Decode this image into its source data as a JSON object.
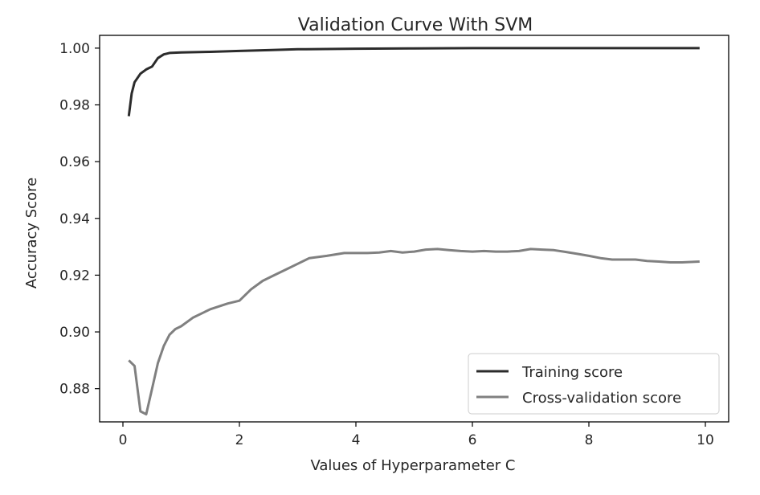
{
  "chart_data": {
    "type": "line",
    "title": "Validation Curve With SVM",
    "xlabel": "Values of Hyperparameter C",
    "ylabel": "Accuracy Score",
    "xlim": [
      -0.4,
      10.4
    ],
    "ylim": [
      0.8683,
      1.0045
    ],
    "xticks": [
      0,
      2,
      4,
      6,
      8,
      10
    ],
    "yticks": [
      0.88,
      0.9,
      0.92,
      0.94,
      0.96,
      0.98,
      1.0
    ],
    "ytick_labels": [
      "0.88",
      "0.90",
      "0.92",
      "0.94",
      "0.96",
      "0.98",
      "1.00"
    ],
    "grid": false,
    "legend_position": "lower-right",
    "series": [
      {
        "name": "Training score",
        "color": "#2b2b2b",
        "x": [
          0.1,
          0.15,
          0.2,
          0.3,
          0.4,
          0.5,
          0.6,
          0.7,
          0.8,
          1.0,
          1.5,
          2.0,
          2.5,
          3.0,
          4.0,
          5.0,
          6.0,
          7.0,
          8.0,
          9.0,
          9.9
        ],
        "y": [
          0.976,
          0.984,
          0.988,
          0.991,
          0.9925,
          0.9935,
          0.9965,
          0.9978,
          0.9983,
          0.9985,
          0.9987,
          0.999,
          0.9993,
          0.9996,
          0.9998,
          0.9999,
          1.0,
          1.0,
          1.0,
          1.0,
          1.0
        ]
      },
      {
        "name": "Cross-validation score",
        "color": "#808080",
        "x": [
          0.1,
          0.2,
          0.3,
          0.4,
          0.5,
          0.6,
          0.7,
          0.8,
          0.9,
          1.0,
          1.2,
          1.5,
          1.8,
          2.0,
          2.2,
          2.4,
          2.6,
          2.8,
          3.0,
          3.2,
          3.5,
          3.8,
          4.0,
          4.2,
          4.4,
          4.6,
          4.8,
          5.0,
          5.2,
          5.4,
          5.6,
          5.8,
          6.0,
          6.2,
          6.4,
          6.6,
          6.8,
          7.0,
          7.2,
          7.4,
          7.6,
          7.8,
          8.0,
          8.2,
          8.4,
          8.6,
          8.8,
          9.0,
          9.2,
          9.4,
          9.6,
          9.9
        ],
        "y": [
          0.89,
          0.888,
          0.872,
          0.871,
          0.88,
          0.889,
          0.895,
          0.899,
          0.901,
          0.902,
          0.905,
          0.908,
          0.91,
          0.911,
          0.915,
          0.918,
          0.92,
          0.922,
          0.924,
          0.926,
          0.9268,
          0.9278,
          0.9278,
          0.9278,
          0.928,
          0.9285,
          0.928,
          0.9283,
          0.929,
          0.9292,
          0.9288,
          0.9285,
          0.9283,
          0.9285,
          0.9283,
          0.9283,
          0.9285,
          0.9292,
          0.929,
          0.9288,
          0.9282,
          0.9275,
          0.9268,
          0.926,
          0.9255,
          0.9255,
          0.9255,
          0.925,
          0.9248,
          0.9245,
          0.9245,
          0.9248
        ]
      }
    ]
  }
}
